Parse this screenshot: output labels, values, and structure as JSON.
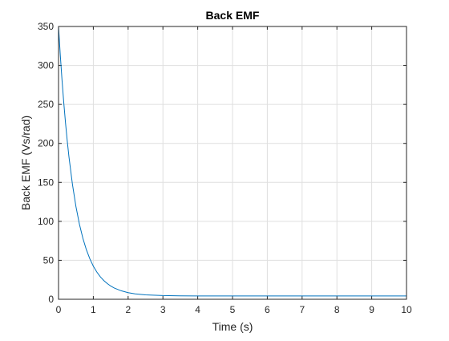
{
  "chart_data": {
    "type": "line",
    "title": "Back EMF",
    "xlabel": "Time (s)",
    "ylabel": "Back EMF (Vs/rad)",
    "xlim": [
      0,
      10
    ],
    "ylim": [
      0,
      350
    ],
    "xticks": [
      0,
      1,
      2,
      3,
      4,
      5,
      6,
      7,
      8,
      9,
      10
    ],
    "yticks": [
      0,
      50,
      100,
      150,
      200,
      250,
      300,
      350
    ],
    "grid": true,
    "legend": "none",
    "series": [
      {
        "color": "#0072bd",
        "x": [
          0,
          0.05,
          0.1,
          0.15,
          0.2,
          0.25,
          0.3,
          0.4,
          0.5,
          0.6,
          0.7,
          0.8,
          0.9,
          1.0,
          1.1,
          1.2,
          1.3,
          1.4,
          1.5,
          1.6,
          1.8,
          2.0,
          2.2,
          2.5,
          3.0,
          3.5,
          4.0,
          5.0,
          6.0,
          7.0,
          8.0,
          9.0,
          10.0
        ],
        "y": [
          350,
          313.7,
          281.4,
          252.5,
          226.6,
          203.4,
          182.6,
          147.4,
          119.1,
          96.4,
          78.2,
          63.6,
          51.9,
          42.5,
          35.0,
          28.9,
          24.1,
          20.2,
          17.0,
          14.5,
          10.9,
          8.5,
          7.0,
          5.7,
          4.7,
          4.4,
          4.3,
          4.2,
          4.2,
          4.2,
          4.2,
          4.2,
          4.2
        ]
      }
    ]
  }
}
